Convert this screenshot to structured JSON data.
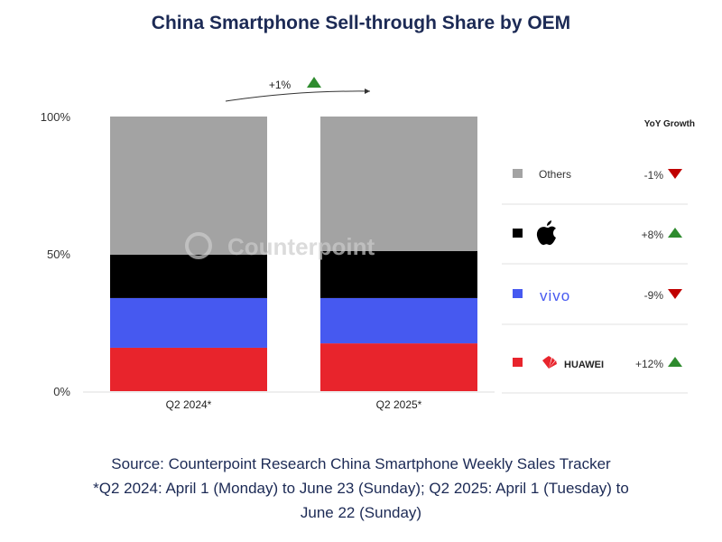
{
  "chart_data": {
    "type": "bar",
    "stacked": true,
    "title": "China Smartphone Sell-through Share by OEM",
    "categories": [
      "Q2 2024*",
      "Q2 2025*"
    ],
    "yticks": [
      "0%",
      "50%",
      "100%"
    ],
    "ylim": [
      0,
      100
    ],
    "grid": false,
    "legend_position": "right",
    "legend_header": "YoY Growth",
    "series": [
      {
        "name": "HUAWEI",
        "color": "#e8242c",
        "values": [
          15.8,
          17.4
        ],
        "yoy": "+12%",
        "direction": "up"
      },
      {
        "name": "vivo",
        "color": "#4659f0",
        "values": [
          18.1,
          16.5
        ],
        "yoy": "-9%",
        "direction": "down"
      },
      {
        "name": "Apple",
        "color": "#000000",
        "values": [
          15.8,
          17.1
        ],
        "yoy": "+8%",
        "direction": "up"
      },
      {
        "name": "Others",
        "color": "#a3a3a3",
        "values": [
          50.3,
          49.0
        ],
        "yoy": "-1%",
        "direction": "down"
      }
    ],
    "market_growth": "+1%",
    "watermark": "Counterpoint",
    "colors": {
      "up": "#2e8b2e",
      "down": "#c00000"
    }
  },
  "footer": {
    "source": "Source: Counterpoint Research China Smartphone Weekly Sales Tracker",
    "note_line1": "*Q2 2024: April 1 (Monday) to June 23 (Sunday); Q2 2025: April 1 (Tuesday) to",
    "note_line2": "June 22 (Sunday)"
  }
}
